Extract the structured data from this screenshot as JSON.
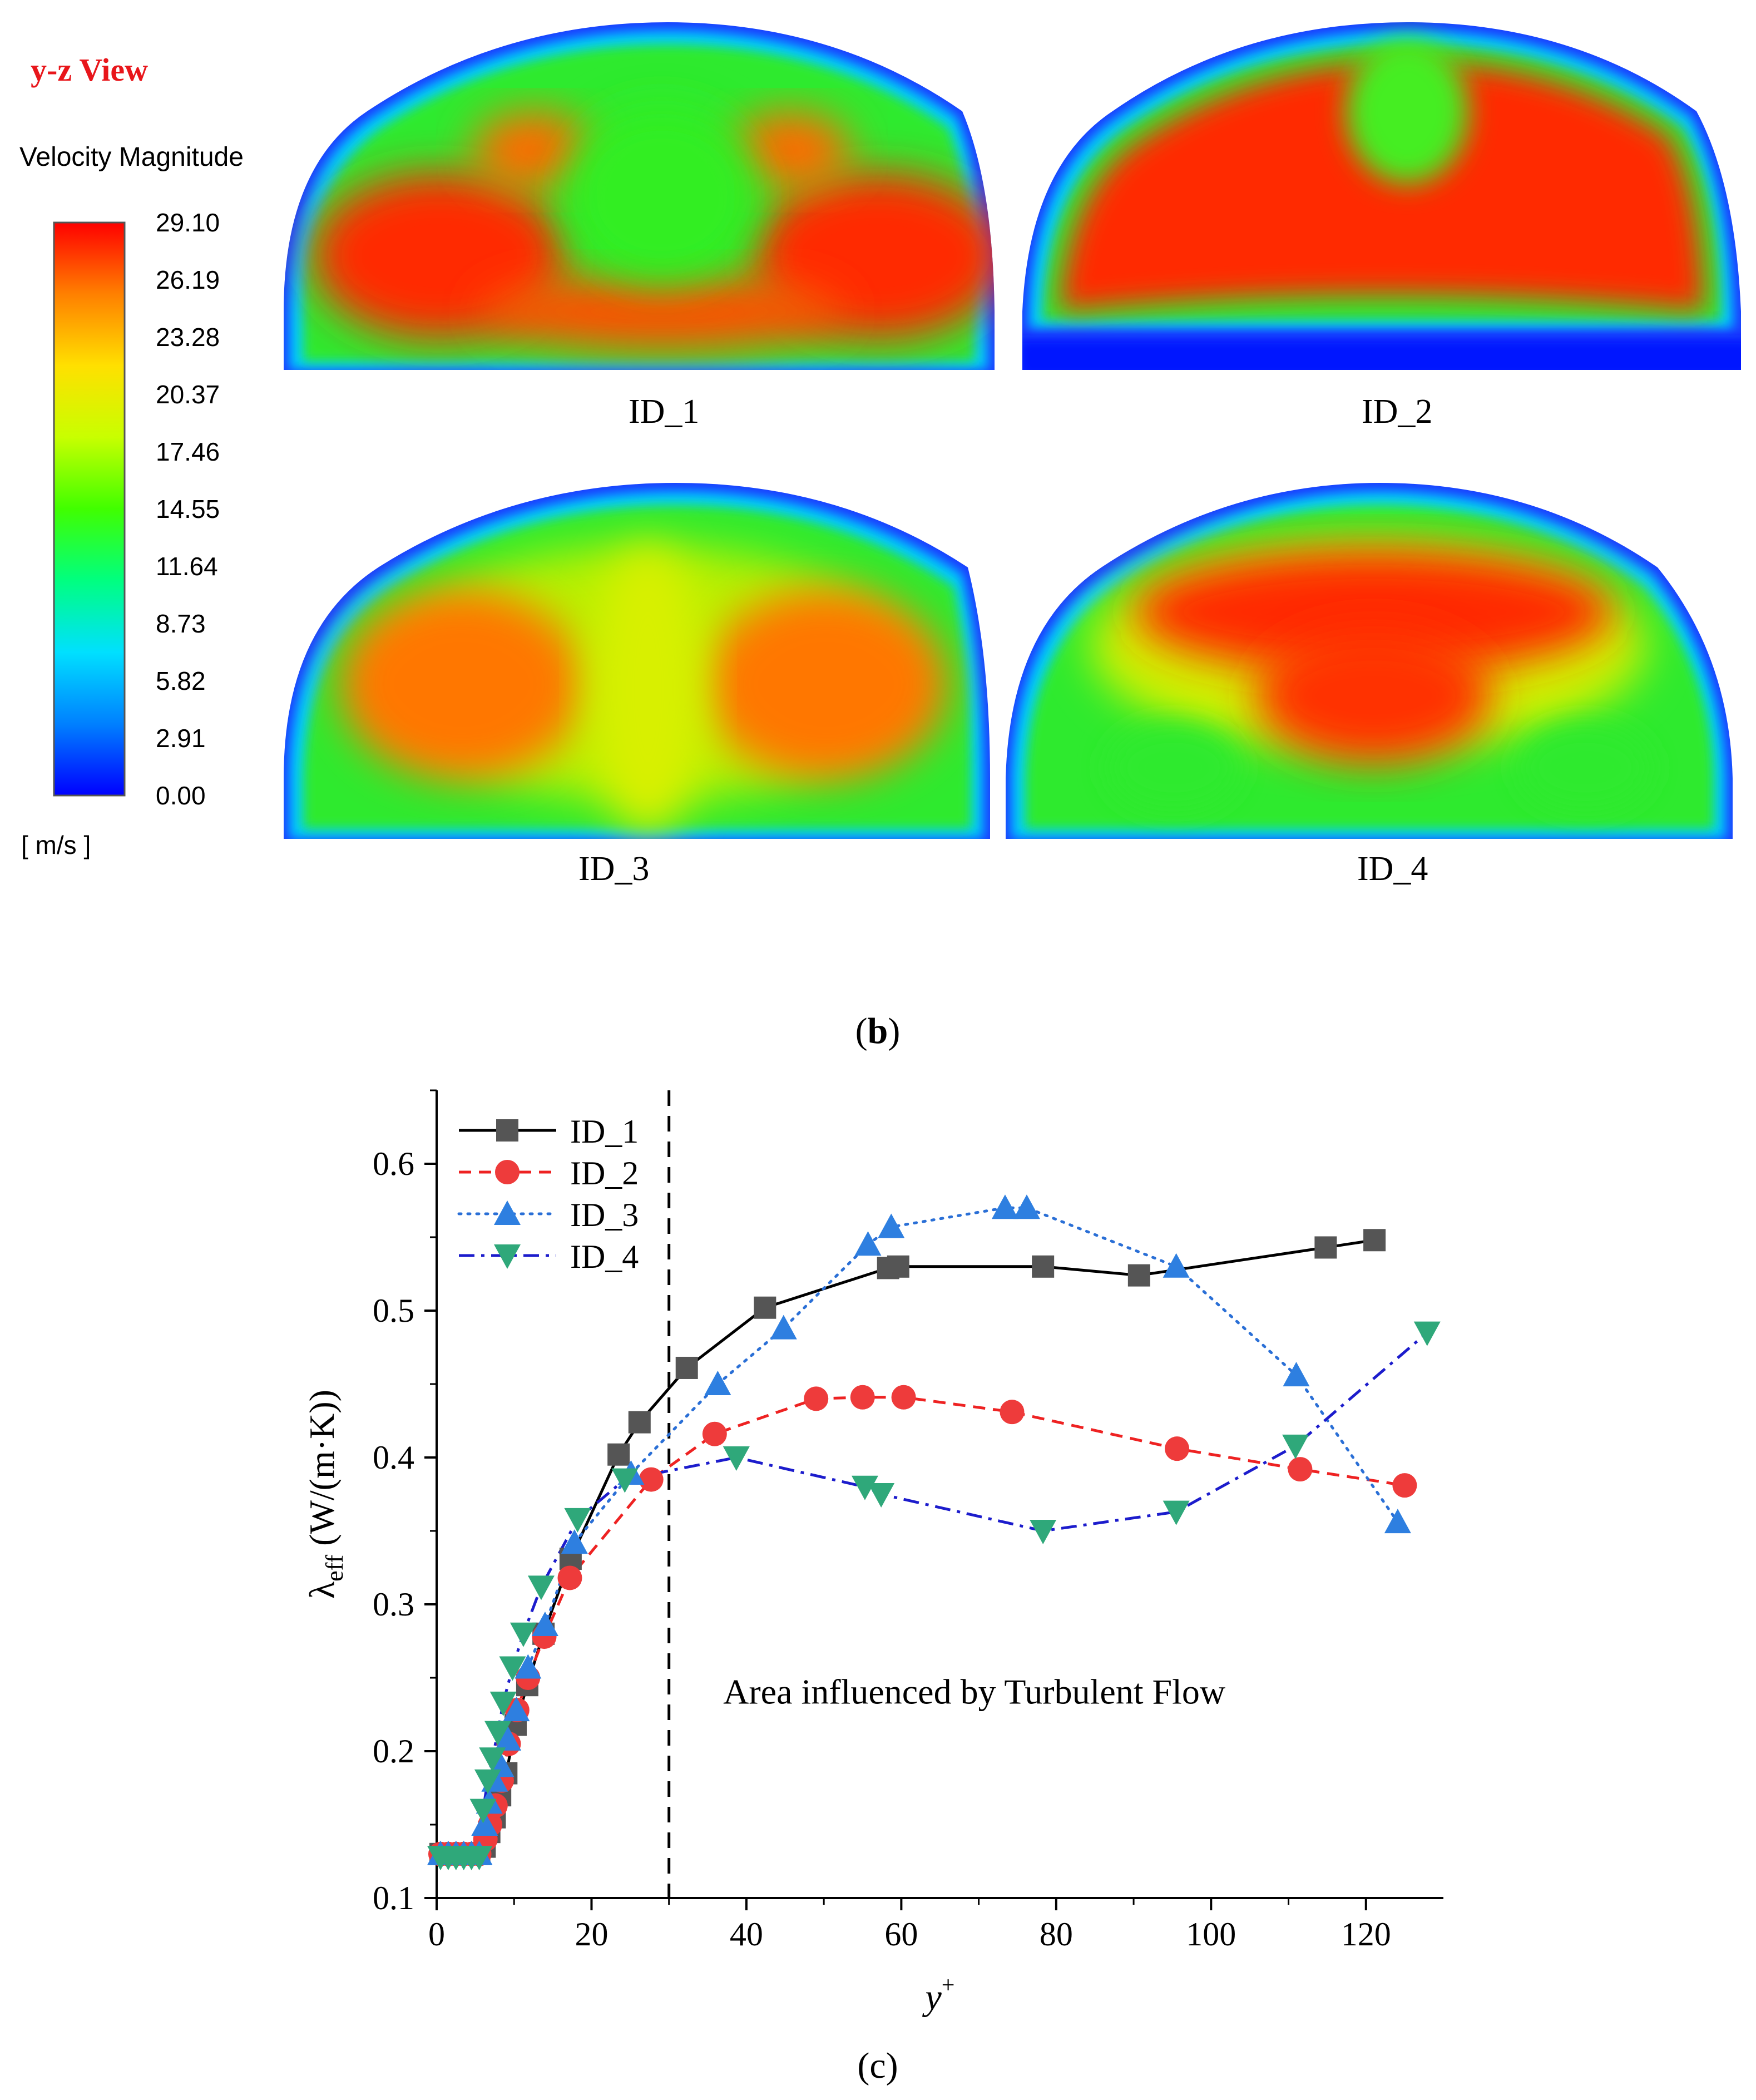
{
  "panel_b": {
    "view_title": "y-z View",
    "view_title_color": "#e8161b",
    "legend": {
      "title": "Velocity Magnitude",
      "unit": "[ m/s ]",
      "ticks": [
        "29.10",
        "26.19",
        "23.28",
        "20.37",
        "17.46",
        "14.55",
        "11.64",
        "8.73",
        "5.82",
        "2.91",
        "0.00"
      ],
      "colors": [
        "#0000ff",
        "#0080ff",
        "#00e0ff",
        "#00ff80",
        "#40ff00",
        "#c8ff00",
        "#ffe000",
        "#ff8000",
        "#ff0000"
      ]
    },
    "contours": [
      {
        "id": "ID_1",
        "pattern": "two-lobe-red-central-green"
      },
      {
        "id": "ID_2",
        "pattern": "uniform-red-with-blue-base"
      },
      {
        "id": "ID_3",
        "pattern": "two-lobe-orange-yellow-center"
      },
      {
        "id": "ID_4",
        "pattern": "upper-red-mass"
      }
    ],
    "caption": "b"
  },
  "chart_data": {
    "type": "line",
    "xlabel": "y",
    "xlabel_sup": "+",
    "ylabel": "λ",
    "ylabel_sub": "eff",
    "ylabel_unit": " (W/(m·K))",
    "xlim": [
      0,
      130
    ],
    "ylim": [
      0.1,
      0.65
    ],
    "xticks": [
      0,
      20,
      40,
      60,
      80,
      100,
      120
    ],
    "yticks": [
      0.1,
      0.2,
      0.3,
      0.4,
      0.5,
      0.6
    ],
    "vline_x": 30,
    "annotation": "Area influenced by Turbulent Flow",
    "caption": "c",
    "series": [
      {
        "name": "ID_1",
        "color": "#000000",
        "marker_color": "#555555",
        "marker": "square",
        "dash": "solid",
        "x": [
          0.5,
          1.5,
          2.5,
          3.5,
          4.5,
          5.5,
          6.2,
          6.8,
          7.5,
          8.2,
          9.0,
          10.2,
          11.7,
          13.8,
          17.3,
          23.5,
          26.2,
          32.3,
          42.4,
          58.3,
          59.6,
          78.3,
          90.7,
          114.8,
          121.1
        ],
        "y": [
          0.13,
          0.13,
          0.13,
          0.13,
          0.13,
          0.13,
          0.135,
          0.145,
          0.155,
          0.17,
          0.185,
          0.218,
          0.245,
          0.28,
          0.331,
          0.402,
          0.424,
          0.461,
          0.502,
          0.529,
          0.53,
          0.53,
          0.524,
          0.543,
          0.548
        ]
      },
      {
        "name": "ID_2",
        "color": "#ee2222",
        "marker_color": "#ee3b3b",
        "marker": "circle",
        "dash": "dashed",
        "x": [
          0.5,
          1.5,
          2.5,
          3.5,
          4.5,
          5.5,
          6.3,
          6.9,
          7.6,
          8.4,
          9.3,
          10.4,
          11.8,
          13.9,
          17.2,
          27.7,
          35.9,
          49.0,
          55.0,
          60.3,
          74.3,
          95.6,
          111.5,
          125.0
        ],
        "y": [
          0.13,
          0.13,
          0.13,
          0.13,
          0.13,
          0.13,
          0.14,
          0.15,
          0.163,
          0.18,
          0.205,
          0.228,
          0.25,
          0.278,
          0.318,
          0.385,
          0.416,
          0.44,
          0.441,
          0.441,
          0.431,
          0.406,
          0.392,
          0.381
        ]
      },
      {
        "name": "ID_3",
        "color": "#2a6fd6",
        "marker_color": "#2e7fe0",
        "marker": "triangle-up",
        "dash": "dotted",
        "x": [
          0.5,
          1.5,
          2.5,
          3.5,
          4.5,
          5.5,
          6.2,
          6.8,
          7.5,
          8.3,
          9.2,
          10.3,
          11.8,
          14.0,
          17.8,
          25.1,
          36.3,
          44.8,
          55.7,
          58.7,
          73.4,
          76.2,
          95.5,
          111.0,
          124.1
        ],
        "y": [
          0.13,
          0.13,
          0.13,
          0.13,
          0.13,
          0.13,
          0.15,
          0.165,
          0.18,
          0.19,
          0.208,
          0.228,
          0.257,
          0.286,
          0.342,
          0.389,
          0.45,
          0.488,
          0.545,
          0.557,
          0.57,
          0.57,
          0.53,
          0.456,
          0.356
        ]
      },
      {
        "name": "ID_4",
        "color": "#1c1ccc",
        "marker_color": "#2fa87a",
        "marker": "triangle-down",
        "dash": "dashdot",
        "x": [
          0.5,
          1.5,
          2.5,
          3.5,
          4.5,
          5.5,
          6.0,
          6.6,
          7.2,
          7.9,
          8.6,
          9.8,
          11.2,
          13.5,
          18.2,
          24.3,
          38.7,
          55.3,
          57.4,
          78.3,
          95.5,
          110.9,
          127.9
        ],
        "y": [
          0.128,
          0.128,
          0.128,
          0.128,
          0.128,
          0.128,
          0.16,
          0.18,
          0.195,
          0.213,
          0.233,
          0.257,
          0.28,
          0.312,
          0.358,
          0.385,
          0.4,
          0.38,
          0.375,
          0.35,
          0.363,
          0.408,
          0.485
        ]
      }
    ]
  }
}
